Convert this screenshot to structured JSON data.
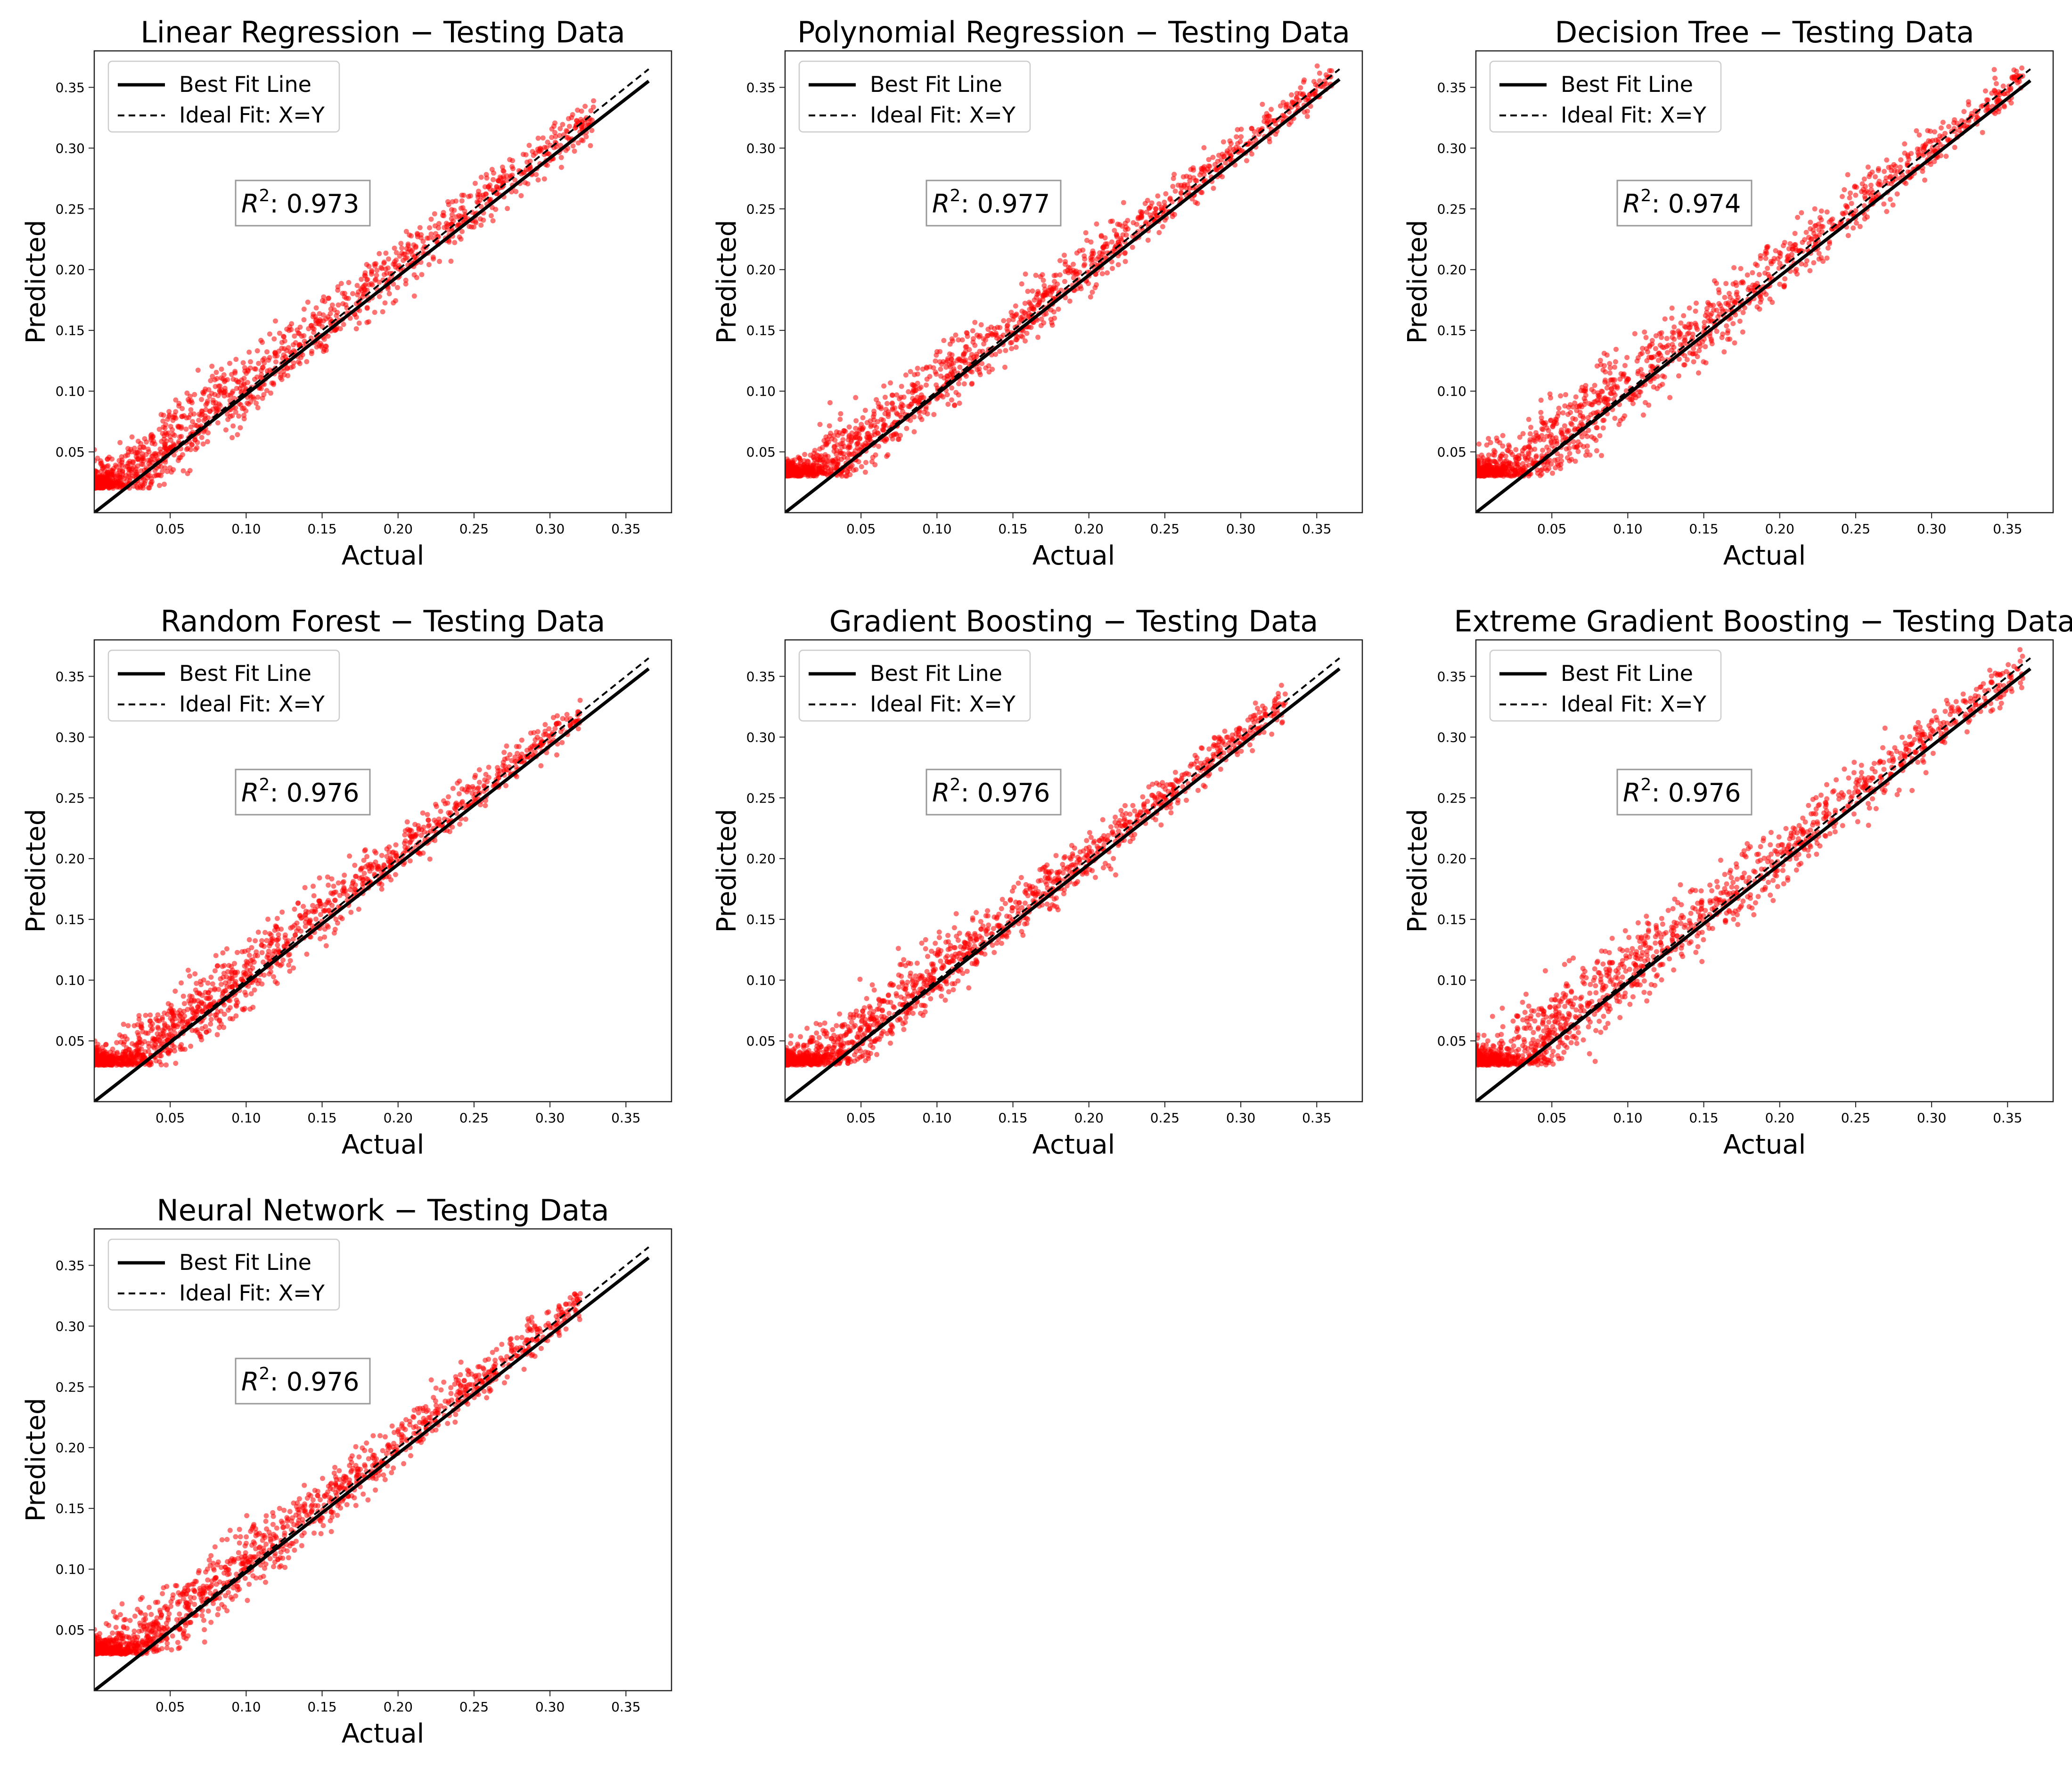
{
  "colors": {
    "scatter": "#ff0000",
    "best_fit": "#000000",
    "ideal_fit": "#000000",
    "axes": "#222222",
    "legend_border": "#cccccc",
    "r2_border": "#999999"
  },
  "chart_data": [
    {
      "type": "scatter",
      "title": "Linear Regression − Testing Data",
      "xlabel": "Actual",
      "ylabel": "Predicted",
      "xlim": [
        0.0,
        0.38
      ],
      "ylim": [
        0.0,
        0.38
      ],
      "xticks": [
        0.05,
        0.1,
        0.15,
        0.2,
        0.25,
        0.3,
        0.35
      ],
      "xtick_labels": [
        "0.05",
        "0.10",
        "0.15",
        "0.20",
        "0.25",
        "0.30",
        "0.35"
      ],
      "yticks": [
        0.05,
        0.1,
        0.15,
        0.2,
        0.25,
        0.3,
        0.35
      ],
      "ytick_labels": [
        "0.05",
        "0.10",
        "0.15",
        "0.20",
        "0.25",
        "0.30",
        "0.35"
      ],
      "legend": {
        "location": "upper-left",
        "entries": [
          "Best Fit Line",
          "Ideal Fit: X=Y"
        ]
      },
      "r2_label": "0.973",
      "best_fit": {
        "slope": 0.973,
        "intercept": 0.0,
        "x_range": [
          0.0,
          0.365
        ]
      },
      "ideal_fit": {
        "x_range": [
          0.0,
          0.365
        ]
      },
      "point_cloud": {
        "x_min": 0.0,
        "x_max": 0.33,
        "floor": 0.02,
        "spread": 0.012
      }
    },
    {
      "type": "scatter",
      "title": "Polynomial Regression − Testing Data",
      "xlabel": "Actual",
      "ylabel": "Predicted",
      "xlim": [
        0.0,
        0.38
      ],
      "ylim": [
        0.0,
        0.38
      ],
      "xticks": [
        0.05,
        0.1,
        0.15,
        0.2,
        0.25,
        0.3,
        0.35
      ],
      "xtick_labels": [
        "0.05",
        "0.10",
        "0.15",
        "0.20",
        "0.25",
        "0.30",
        "0.35"
      ],
      "yticks": [
        0.05,
        0.1,
        0.15,
        0.2,
        0.25,
        0.3,
        0.35
      ],
      "ytick_labels": [
        "0.05",
        "0.10",
        "0.15",
        "0.20",
        "0.25",
        "0.30",
        "0.35"
      ],
      "legend": {
        "location": "upper-left",
        "entries": [
          "Best Fit Line",
          "Ideal Fit: X=Y"
        ]
      },
      "r2_label": "0.977",
      "best_fit": {
        "slope": 0.977,
        "intercept": 0.0,
        "x_range": [
          0.0,
          0.365
        ]
      },
      "ideal_fit": {
        "x_range": [
          0.0,
          0.365
        ]
      },
      "point_cloud": {
        "x_min": 0.0,
        "x_max": 0.36,
        "floor": 0.03,
        "spread": 0.011
      }
    },
    {
      "type": "scatter",
      "title": "Decision Tree − Testing Data",
      "xlabel": "Actual",
      "ylabel": "Predicted",
      "xlim": [
        0.0,
        0.38
      ],
      "ylim": [
        0.0,
        0.38
      ],
      "xticks": [
        0.05,
        0.1,
        0.15,
        0.2,
        0.25,
        0.3,
        0.35
      ],
      "xtick_labels": [
        "0.05",
        "0.10",
        "0.15",
        "0.20",
        "0.25",
        "0.30",
        "0.35"
      ],
      "yticks": [
        0.05,
        0.1,
        0.15,
        0.2,
        0.25,
        0.3,
        0.35
      ],
      "ytick_labels": [
        "0.05",
        "0.10",
        "0.15",
        "0.20",
        "0.25",
        "0.30",
        "0.35"
      ],
      "legend": {
        "location": "upper-left",
        "entries": [
          "Best Fit Line",
          "Ideal Fit: X=Y"
        ]
      },
      "r2_label": "0.974",
      "best_fit": {
        "slope": 0.974,
        "intercept": 0.0,
        "x_range": [
          0.0,
          0.365
        ]
      },
      "ideal_fit": {
        "x_range": [
          0.0,
          0.365
        ]
      },
      "point_cloud": {
        "x_min": 0.0,
        "x_max": 0.36,
        "floor": 0.03,
        "spread": 0.013
      }
    },
    {
      "type": "scatter",
      "title": "Random Forest − Testing Data",
      "xlabel": "Actual",
      "ylabel": "Predicted",
      "xlim": [
        0.0,
        0.38
      ],
      "ylim": [
        0.0,
        0.38
      ],
      "xticks": [
        0.05,
        0.1,
        0.15,
        0.2,
        0.25,
        0.3,
        0.35
      ],
      "xtick_labels": [
        "0.05",
        "0.10",
        "0.15",
        "0.20",
        "0.25",
        "0.30",
        "0.35"
      ],
      "yticks": [
        0.05,
        0.1,
        0.15,
        0.2,
        0.25,
        0.3,
        0.35
      ],
      "ytick_labels": [
        "0.05",
        "0.10",
        "0.15",
        "0.20",
        "0.25",
        "0.30",
        "0.35"
      ],
      "legend": {
        "location": "upper-left",
        "entries": [
          "Best Fit Line",
          "Ideal Fit: X=Y"
        ]
      },
      "r2_label": "0.976",
      "best_fit": {
        "slope": 0.976,
        "intercept": 0.0,
        "x_range": [
          0.0,
          0.365
        ]
      },
      "ideal_fit": {
        "x_range": [
          0.0,
          0.365
        ]
      },
      "point_cloud": {
        "x_min": 0.0,
        "x_max": 0.32,
        "floor": 0.03,
        "spread": 0.011
      }
    },
    {
      "type": "scatter",
      "title": "Gradient Boosting − Testing Data",
      "xlabel": "Actual",
      "ylabel": "Predicted",
      "xlim": [
        0.0,
        0.38
      ],
      "ylim": [
        0.0,
        0.38
      ],
      "xticks": [
        0.05,
        0.1,
        0.15,
        0.2,
        0.25,
        0.3,
        0.35
      ],
      "xtick_labels": [
        "0.05",
        "0.10",
        "0.15",
        "0.20",
        "0.25",
        "0.30",
        "0.35"
      ],
      "yticks": [
        0.05,
        0.1,
        0.15,
        0.2,
        0.25,
        0.3,
        0.35
      ],
      "ytick_labels": [
        "0.05",
        "0.10",
        "0.15",
        "0.20",
        "0.25",
        "0.30",
        "0.35"
      ],
      "legend": {
        "location": "upper-left",
        "entries": [
          "Best Fit Line",
          "Ideal Fit: X=Y"
        ]
      },
      "r2_label": "0.976",
      "best_fit": {
        "slope": 0.976,
        "intercept": 0.0,
        "x_range": [
          0.0,
          0.365
        ]
      },
      "ideal_fit": {
        "x_range": [
          0.0,
          0.365
        ]
      },
      "point_cloud": {
        "x_min": 0.0,
        "x_max": 0.33,
        "floor": 0.03,
        "spread": 0.011
      }
    },
    {
      "type": "scatter",
      "title": "Extreme Gradient Boosting − Testing Data",
      "xlabel": "Actual",
      "ylabel": "Predicted",
      "xlim": [
        0.0,
        0.38
      ],
      "ylim": [
        0.0,
        0.38
      ],
      "xticks": [
        0.05,
        0.1,
        0.15,
        0.2,
        0.25,
        0.3,
        0.35
      ],
      "xtick_labels": [
        "0.05",
        "0.10",
        "0.15",
        "0.20",
        "0.25",
        "0.30",
        "0.35"
      ],
      "yticks": [
        0.05,
        0.1,
        0.15,
        0.2,
        0.25,
        0.3,
        0.35
      ],
      "ytick_labels": [
        "0.05",
        "0.10",
        "0.15",
        "0.20",
        "0.25",
        "0.30",
        "0.35"
      ],
      "legend": {
        "location": "upper-left",
        "entries": [
          "Best Fit Line",
          "Ideal Fit: X=Y"
        ]
      },
      "r2_label": "0.976",
      "best_fit": {
        "slope": 0.976,
        "intercept": 0.0,
        "x_range": [
          0.0,
          0.365
        ]
      },
      "ideal_fit": {
        "x_range": [
          0.0,
          0.365
        ]
      },
      "point_cloud": {
        "x_min": 0.0,
        "x_max": 0.36,
        "floor": 0.03,
        "spread": 0.014
      }
    },
    {
      "type": "scatter",
      "title": "Neural Network − Testing Data",
      "xlabel": "Actual",
      "ylabel": "Predicted",
      "xlim": [
        0.0,
        0.38
      ],
      "ylim": [
        0.0,
        0.38
      ],
      "xticks": [
        0.05,
        0.1,
        0.15,
        0.2,
        0.25,
        0.3,
        0.35
      ],
      "xtick_labels": [
        "0.05",
        "0.10",
        "0.15",
        "0.20",
        "0.25",
        "0.30",
        "0.35"
      ],
      "yticks": [
        0.05,
        0.1,
        0.15,
        0.2,
        0.25,
        0.3,
        0.35
      ],
      "ytick_labels": [
        "0.05",
        "0.10",
        "0.15",
        "0.20",
        "0.25",
        "0.30",
        "0.35"
      ],
      "legend": {
        "location": "upper-left",
        "entries": [
          "Best Fit Line",
          "Ideal Fit: X=Y"
        ]
      },
      "r2_label": "0.976",
      "best_fit": {
        "slope": 0.976,
        "intercept": 0.0,
        "x_range": [
          0.0,
          0.365
        ]
      },
      "ideal_fit": {
        "x_range": [
          0.0,
          0.365
        ]
      },
      "point_cloud": {
        "x_min": 0.0,
        "x_max": 0.32,
        "floor": 0.03,
        "spread": 0.011
      }
    }
  ]
}
